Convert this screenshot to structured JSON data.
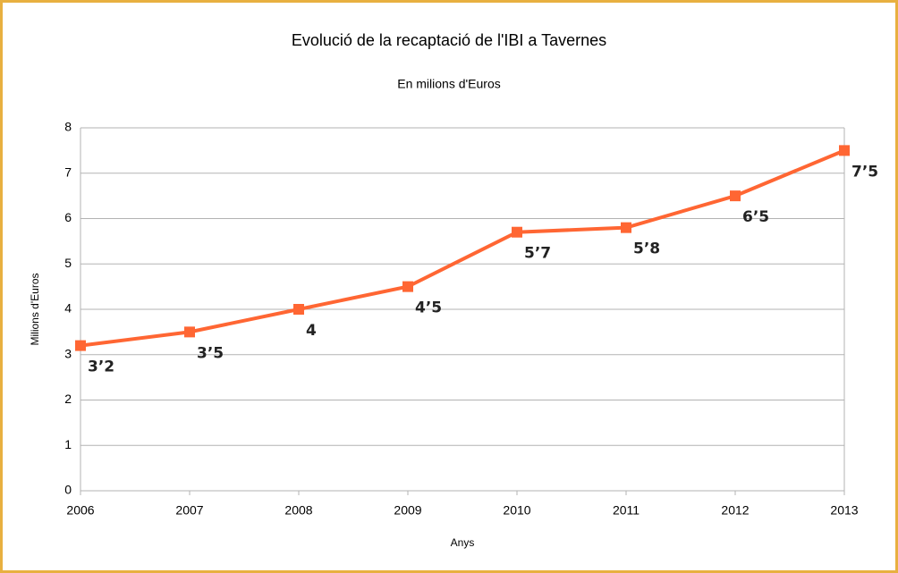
{
  "chart_data": {
    "type": "line",
    "title": "Evolució de la recaptació de l'IBI a Tavernes",
    "subtitle": "En milions d'Euros",
    "x_label": "Anys",
    "y_label": "Milions d'Euros",
    "categories": [
      "2006",
      "2007",
      "2008",
      "2009",
      "2010",
      "2011",
      "2012",
      "2013"
    ],
    "values": [
      3.2,
      3.5,
      4,
      4.5,
      5.7,
      5.8,
      6.5,
      7.5
    ],
    "value_labels": [
      "3’2",
      "3’5",
      "4",
      "4’5",
      "5’7",
      "5’8",
      "6’5",
      "7’5"
    ],
    "color": "#ff6633",
    "ylim": [
      0,
      8
    ],
    "yticks": [
      0,
      1,
      2,
      3,
      4,
      5,
      6,
      7,
      8
    ],
    "grid": true
  }
}
